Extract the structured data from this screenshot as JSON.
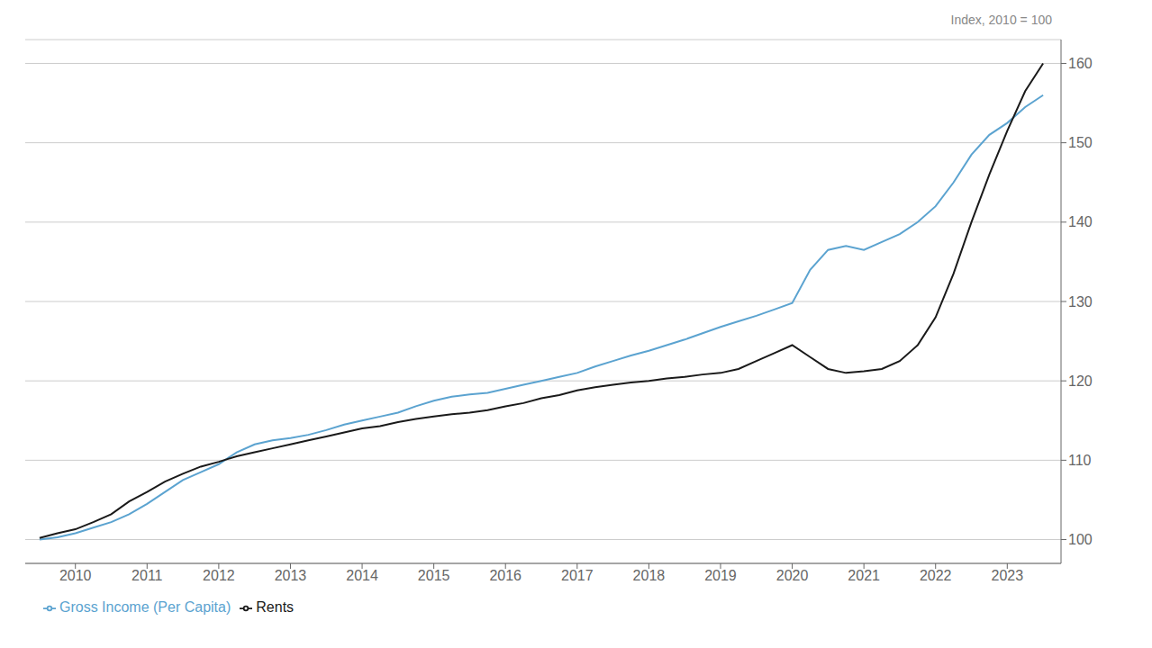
{
  "chart_data": {
    "type": "line",
    "title": "Index, 2010 = 100",
    "x": [
      2009.5,
      2009.75,
      2010.0,
      2010.25,
      2010.5,
      2010.75,
      2011.0,
      2011.25,
      2011.5,
      2011.75,
      2012.0,
      2012.25,
      2012.5,
      2012.75,
      2013.0,
      2013.25,
      2013.5,
      2013.75,
      2014.0,
      2014.25,
      2014.5,
      2014.75,
      2015.0,
      2015.25,
      2015.5,
      2015.75,
      2016.0,
      2016.25,
      2016.5,
      2016.75,
      2017.0,
      2017.25,
      2017.5,
      2017.75,
      2018.0,
      2018.25,
      2018.5,
      2018.75,
      2019.0,
      2019.25,
      2019.5,
      2019.75,
      2020.0,
      2020.25,
      2020.5,
      2020.75,
      2021.0,
      2021.25,
      2021.5,
      2021.75,
      2022.0,
      2022.25,
      2022.5,
      2022.75,
      2023.0,
      2023.25,
      2023.5
    ],
    "series": [
      {
        "name": "Gross Income (Per Capita)",
        "color": "#5ba3d0",
        "values": [
          100.0,
          100.3,
          100.8,
          101.5,
          102.2,
          103.2,
          104.5,
          106.0,
          107.5,
          108.5,
          109.5,
          111.0,
          112.0,
          112.5,
          112.8,
          113.2,
          113.8,
          114.5,
          115.0,
          115.5,
          116.0,
          116.8,
          117.5,
          118.0,
          118.3,
          118.5,
          119.0,
          119.5,
          120.0,
          120.5,
          121.0,
          121.8,
          122.5,
          123.2,
          123.8,
          124.5,
          125.2,
          126.0,
          126.8,
          127.5,
          128.2,
          129.0,
          129.8,
          134.0,
          136.5,
          137.0,
          136.5,
          137.5,
          138.5,
          140.0,
          142.0,
          145.0,
          148.5,
          151.0,
          152.5,
          154.5,
          156.0
        ]
      },
      {
        "name": "Rents",
        "color": "#1a1a1a",
        "values": [
          100.2,
          100.8,
          101.3,
          102.2,
          103.2,
          104.8,
          106.0,
          107.3,
          108.3,
          109.2,
          109.8,
          110.5,
          111.0,
          111.5,
          112.0,
          112.5,
          113.0,
          113.5,
          114.0,
          114.3,
          114.8,
          115.2,
          115.5,
          115.8,
          116.0,
          116.3,
          116.8,
          117.2,
          117.8,
          118.2,
          118.8,
          119.2,
          119.5,
          119.8,
          120.0,
          120.3,
          120.5,
          120.8,
          121.0,
          121.5,
          122.5,
          123.5,
          124.5,
          123.0,
          121.5,
          121.0,
          121.2,
          121.5,
          122.5,
          124.5,
          128.0,
          133.5,
          140.0,
          146.0,
          151.5,
          156.5,
          160.0
        ]
      }
    ],
    "xlim": [
      2009.3,
      2023.75
    ],
    "xticks": [
      2010,
      2011,
      2012,
      2013,
      2014,
      2015,
      2016,
      2017,
      2018,
      2019,
      2020,
      2021,
      2022,
      2023
    ],
    "ylim": [
      97,
      163
    ],
    "yticks": [
      100,
      110,
      120,
      130,
      140,
      150,
      160
    ],
    "grid": true,
    "legend": "lower left"
  }
}
